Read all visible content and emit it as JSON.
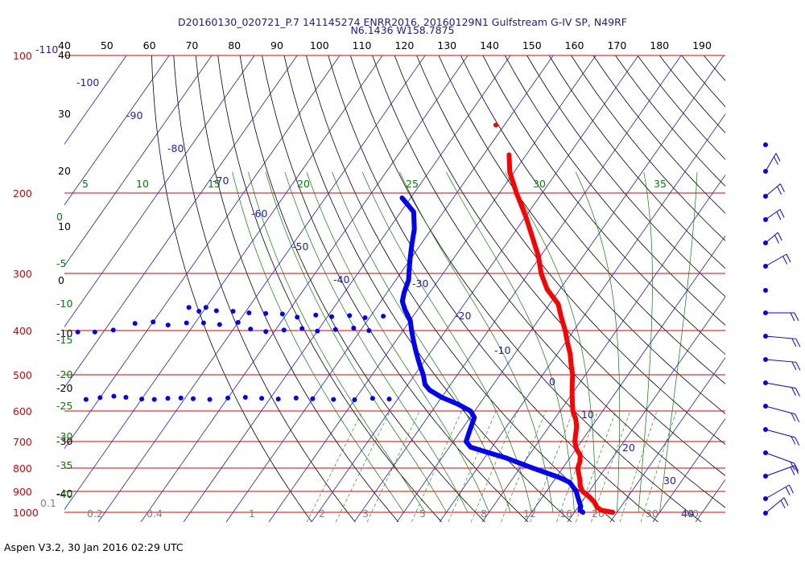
{
  "header": {
    "line1": "D20160130_020721_P.7 141145274 ENRR2016, 20160129N1 Gulfstream G-IV SP, N49RF",
    "line2": "N6.1436 W158.7875"
  },
  "footer": "Aspen V3.2, 30 Jan 2016  02:29 UTC",
  "colors": {
    "isobar": "#e00000",
    "isotherm": "#1c1cc8",
    "dry_adiabat": "#000000",
    "moist_adiabat": "#008000",
    "mixing_ratio": "#808080",
    "temperature_trace": "#ff0000",
    "dewpoint_trace": "#0000ff",
    "wind_barbs": "#0000ff"
  },
  "chart_data": {
    "type": "skew-t log-p",
    "title": "D20160130_020721_P.7 141145274 ENRR2016, 20160129N1 Gulfstream G-IV SP, N49RF",
    "subtitle": "N6.1436 W158.7875",
    "pressure_axis": {
      "unit": "hPa",
      "scale": "log",
      "range": [
        1000,
        100
      ],
      "tick_labels": [
        "100",
        "200",
        "300",
        "400",
        "500",
        "600",
        "700",
        "800",
        "900",
        "1000"
      ],
      "extra_label": "-110"
    },
    "top_axis": {
      "tick_labels": [
        "40",
        "50",
        "60",
        "70",
        "80",
        "90",
        "100",
        "110",
        "120",
        "130",
        "140",
        "150",
        "160",
        "170",
        "180",
        "190"
      ]
    },
    "left_scale_labels": [
      "40",
      "30",
      "20",
      "10",
      "0",
      "-10",
      "-20",
      "-30",
      "-40"
    ],
    "isotherm_labels": [
      "-100",
      "-90",
      "-80",
      "-70",
      "-60",
      "-50",
      "-40",
      "-30",
      "-20",
      "-10",
      "0",
      "10",
      "20",
      "30",
      "40"
    ],
    "moist_adiabat_labels": [
      "5",
      "10",
      "15",
      "20",
      "25",
      "30",
      "35"
    ],
    "moist_left_labels": [
      "0",
      "-5",
      "-10",
      "-15",
      "-20",
      "-25",
      "-30",
      "-35",
      "-40"
    ],
    "mixing_ratio_labels": [
      "0.1",
      "0.2",
      "0.4",
      "1",
      "2",
      "3",
      "5",
      "8",
      "12",
      "16",
      "20",
      "30",
      "40"
    ],
    "series": [
      {
        "name": "Temperature",
        "points_p_T": [
          [
            1000,
            29
          ],
          [
            990,
            26
          ],
          [
            975,
            24.5
          ],
          [
            950,
            23
          ],
          [
            925,
            21
          ],
          [
            900,
            18.5
          ],
          [
            875,
            17
          ],
          [
            850,
            16
          ],
          [
            800,
            13.5
          ],
          [
            775,
            13
          ],
          [
            750,
            12
          ],
          [
            725,
            10
          ],
          [
            700,
            8.5
          ],
          [
            675,
            7.5
          ],
          [
            650,
            6.5
          ],
          [
            625,
            5
          ],
          [
            600,
            3
          ],
          [
            575,
            1.5
          ],
          [
            550,
            0
          ],
          [
            525,
            -1.5
          ],
          [
            500,
            -3
          ],
          [
            475,
            -5
          ],
          [
            450,
            -7
          ],
          [
            425,
            -9.5
          ],
          [
            400,
            -12
          ],
          [
            375,
            -15
          ],
          [
            350,
            -18
          ],
          [
            325,
            -23
          ],
          [
            300,
            -27
          ],
          [
            275,
            -30.5
          ],
          [
            250,
            -35
          ],
          [
            225,
            -40
          ],
          [
            200,
            -46
          ],
          [
            180,
            -51
          ],
          [
            165,
            -54
          ]
        ],
        "isolated_point": [
          142,
          -62
        ]
      },
      {
        "name": "Dewpoint",
        "points_p_T": [
          [
            1000,
            22
          ],
          [
            990,
            21
          ],
          [
            970,
            20.5
          ],
          [
            950,
            19.5
          ],
          [
            930,
            18.5
          ],
          [
            900,
            17
          ],
          [
            860,
            14
          ],
          [
            840,
            11
          ],
          [
            820,
            7
          ],
          [
            800,
            3
          ],
          [
            780,
            -1
          ],
          [
            760,
            -5
          ],
          [
            740,
            -10
          ],
          [
            720,
            -15
          ],
          [
            700,
            -17
          ],
          [
            680,
            -17.5
          ],
          [
            660,
            -18
          ],
          [
            640,
            -18.5
          ],
          [
            620,
            -19
          ],
          [
            600,
            -21
          ],
          [
            580,
            -25
          ],
          [
            560,
            -30
          ],
          [
            540,
            -34
          ],
          [
            525,
            -36
          ],
          [
            500,
            -38
          ],
          [
            480,
            -40
          ],
          [
            460,
            -42
          ],
          [
            440,
            -44
          ],
          [
            420,
            -46
          ],
          [
            400,
            -48
          ],
          [
            380,
            -50
          ],
          [
            360,
            -53
          ],
          [
            345,
            -55
          ],
          [
            330,
            -56
          ],
          [
            310,
            -57
          ],
          [
            300,
            -58
          ],
          [
            280,
            -60
          ],
          [
            260,
            -62
          ],
          [
            240,
            -64
          ],
          [
            220,
            -67
          ],
          [
            205,
            -72
          ]
        ],
        "scatter_points_p_T": [
          [
            565,
            -42
          ],
          [
            563,
            -46
          ],
          [
            567,
            -50
          ],
          [
            566,
            -55
          ],
          [
            564,
            -60
          ],
          [
            562,
            -64
          ],
          [
            565,
            -68
          ],
          [
            563,
            -72
          ],
          [
            560,
            -76
          ],
          [
            562,
            -80
          ],
          [
            566,
            -84
          ],
          [
            564,
            -88
          ],
          [
            562,
            -91
          ],
          [
            563,
            -94
          ],
          [
            566,
            -97
          ],
          [
            565,
            -100
          ],
          [
            560,
            -104
          ],
          [
            557,
            -107
          ],
          [
            561,
            -110
          ],
          [
            566,
            -113
          ],
          [
            400,
            -58
          ],
          [
            395,
            -62
          ],
          [
            398,
            -66
          ],
          [
            401,
            -70
          ],
          [
            396,
            -74
          ],
          [
            399,
            -78
          ],
          [
            402,
            -82
          ],
          [
            397,
            -86
          ],
          [
            384,
            -90
          ],
          [
            388,
            -94
          ],
          [
            385,
            -98
          ],
          [
            385,
            -102
          ],
          [
            389,
            -106
          ],
          [
            383,
            -110
          ],
          [
            386,
            -114
          ],
          [
            399,
            -118
          ],
          [
            403,
            -122
          ],
          [
            403,
            -126
          ],
          [
            405,
            -130
          ],
          [
            372,
            -57
          ],
          [
            375,
            -61
          ],
          [
            371,
            -65
          ],
          [
            373,
            -69
          ],
          [
            370,
            -73
          ],
          [
            374,
            -77
          ],
          [
            368,
            -81
          ],
          [
            367,
            -85
          ],
          [
            366,
            -89
          ],
          [
            363,
            -93
          ],
          [
            362,
            -97
          ],
          [
            363,
            -101
          ],
          [
            356,
            -100
          ],
          [
            356,
            -104
          ]
        ]
      }
    ],
    "wind_barbs_count": 17
  }
}
